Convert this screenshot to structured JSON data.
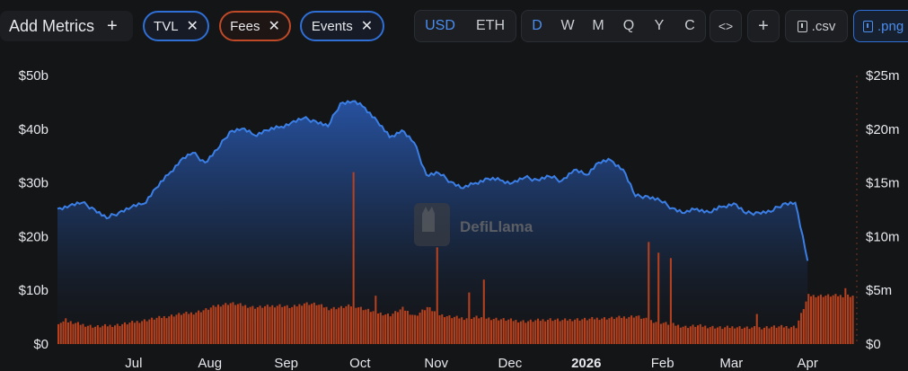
{
  "toolbar": {
    "add_metrics_label": "Add Metrics",
    "add_icon": "plus-icon",
    "metric_pills": [
      {
        "label": "TVL",
        "color": "#2f6fd6"
      },
      {
        "label": "Fees",
        "color": "#c04a28"
      },
      {
        "label": "Events",
        "color": "#2f6fd6"
      }
    ],
    "remove_icon": "close-icon",
    "currency": {
      "options": [
        "USD",
        "ETH"
      ],
      "selected": "USD"
    },
    "periods": {
      "options": [
        "D",
        "W",
        "M",
        "Q",
        "Y",
        "C"
      ],
      "selected": "D"
    },
    "embed_label": "<>",
    "add_chart_label": "+",
    "csv_label": ".csv",
    "png_label": ".png",
    "download_icon": "download-icon"
  },
  "watermark": "DefiLlama",
  "colors": {
    "tvl_line": "#3b7fe6",
    "fees_bars": "#b5411f",
    "background": "#141517",
    "accent": "#4b8ef0"
  },
  "chart_data": {
    "type": "line+bar",
    "left_axis": {
      "ticks": [
        "$0",
        "$10b",
        "$20b",
        "$30b",
        "$40b",
        "$50b"
      ],
      "ylim": [
        0,
        50
      ]
    },
    "right_axis": {
      "ticks": [
        "$0",
        "$5m",
        "$10m",
        "$15m",
        "$20m",
        "$25m"
      ],
      "ylim": [
        0,
        25
      ]
    },
    "x_ticks": [
      "Jul",
      "Aug",
      "Sep",
      "Oct",
      "Nov",
      "Dec",
      "2026",
      "Feb",
      "Mar",
      "Apr"
    ],
    "x_tick_bold": [
      false,
      false,
      false,
      false,
      false,
      false,
      true,
      false,
      false,
      false
    ],
    "x_tick_days": [
      31,
      62,
      93,
      123,
      154,
      184,
      215,
      246,
      274,
      305
    ],
    "x_range_days": [
      0,
      325
    ],
    "series": [
      {
        "name": "TVL",
        "axis": "left",
        "unit": "billion USD",
        "day_step": 5,
        "values": [
          25.2,
          25.8,
          26.3,
          25.1,
          23.4,
          24.5,
          25.5,
          26.1,
          29.0,
          31.5,
          34.2,
          35.6,
          33.8,
          36.2,
          39.5,
          40.1,
          38.9,
          39.8,
          40.3,
          41.2,
          42.0,
          41.5,
          40.5,
          44.8,
          45.2,
          44.0,
          41.5,
          38.5,
          39.8,
          37.5,
          31.5,
          31.8,
          30.2,
          29.0,
          30.0,
          30.8,
          30.5,
          30.0,
          31.0,
          30.6,
          31.2,
          30.4,
          32.4,
          31.5,
          33.8,
          34.2,
          32.5,
          27.5,
          27.5,
          26.7,
          25.3,
          24.4,
          25.2,
          24.5,
          25.5,
          26.2,
          24.3,
          24.5,
          24.6,
          26.1,
          26.3,
          15.5
        ]
      },
      {
        "name": "Fees",
        "axis": "right",
        "unit": "million USD",
        "day_step": 5,
        "values": [
          2.0,
          2.0,
          1.8,
          1.6,
          1.7,
          1.8,
          2.0,
          2.2,
          2.4,
          2.6,
          2.8,
          2.9,
          3.2,
          3.6,
          3.8,
          3.6,
          3.4,
          3.5,
          3.6,
          3.4,
          3.8,
          3.7,
          3.3,
          3.4,
          3.6,
          3.2,
          2.9,
          2.7,
          3.3,
          2.6,
          3.4,
          2.7,
          2.5,
          2.4,
          2.5,
          2.4,
          2.3,
          2.2,
          2.1,
          2.2,
          2.3,
          2.2,
          2.3,
          2.3,
          2.4,
          2.4,
          2.5,
          2.6,
          2.2,
          2.0,
          1.8,
          1.6,
          1.7,
          1.6,
          1.5,
          1.6,
          1.5,
          1.5,
          1.6,
          1.6,
          1.6,
          4.5
        ],
        "spikes": [
          {
            "day": 3,
            "value": 2.4
          },
          {
            "day": 120,
            "value": 16.0
          },
          {
            "day": 129,
            "value": 4.5
          },
          {
            "day": 154,
            "value": 9.0
          },
          {
            "day": 167,
            "value": 4.8
          },
          {
            "day": 173,
            "value": 6.0
          },
          {
            "day": 240,
            "value": 9.5
          },
          {
            "day": 244,
            "value": 8.5
          },
          {
            "day": 249,
            "value": 8.0
          },
          {
            "day": 284,
            "value": 2.8
          },
          {
            "day": 320,
            "value": 5.2
          }
        ]
      }
    ]
  }
}
